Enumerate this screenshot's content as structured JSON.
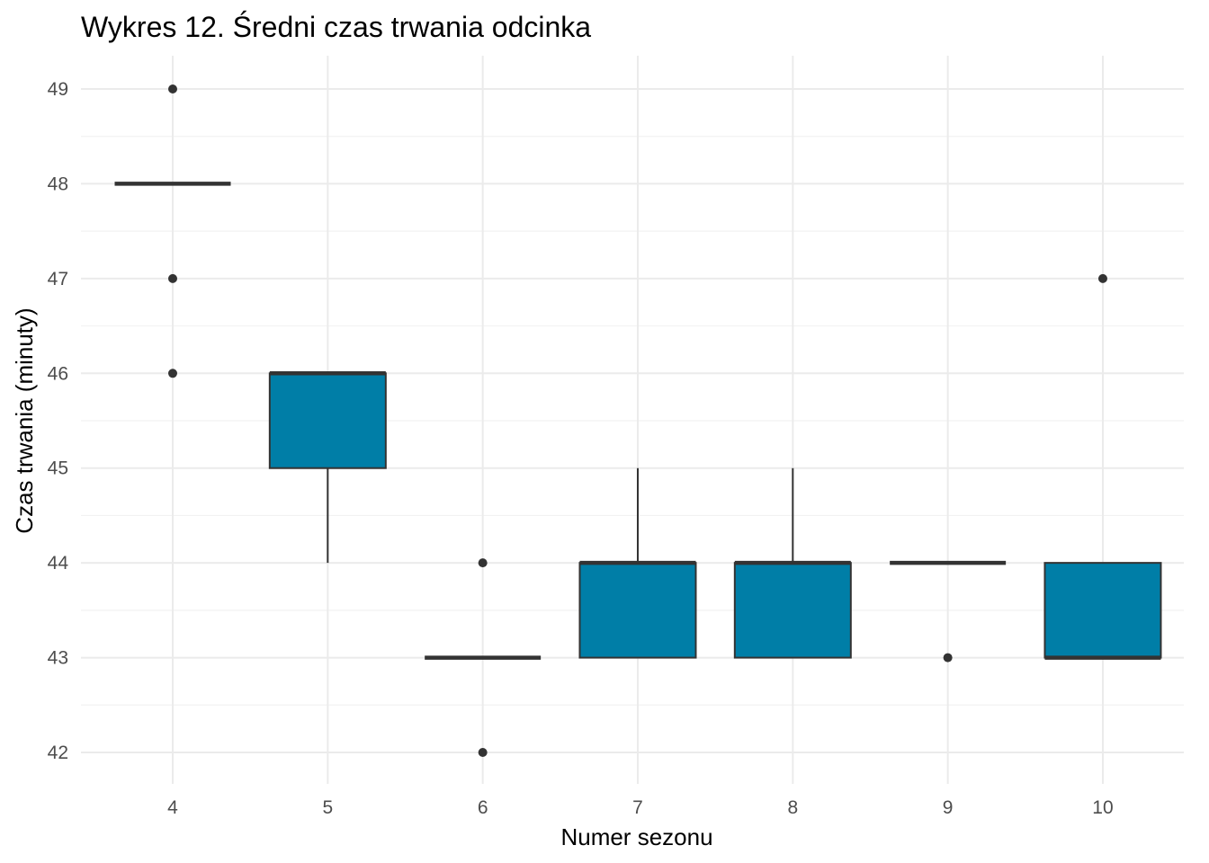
{
  "chart_data": {
    "type": "boxplot",
    "title": "Wykres 12. Średni czas trwania odcinka",
    "xlabel": "Numer sezonu",
    "ylabel": "Czas trwania (minuty)",
    "categories": [
      "4",
      "5",
      "6",
      "7",
      "8",
      "9",
      "10"
    ],
    "yticks": [
      "42",
      "43",
      "44",
      "45",
      "46",
      "47",
      "48",
      "49"
    ],
    "ylim": [
      41.7,
      49.3
    ],
    "grid": true,
    "box_color": "#007EA7",
    "line_color": "#333333",
    "boxes": [
      {
        "category": "4",
        "lower_whisker": 48,
        "q1": 48,
        "median": 48,
        "q3": 48,
        "upper_whisker": 48,
        "outliers": [
          46,
          47,
          49
        ]
      },
      {
        "category": "5",
        "lower_whisker": 44,
        "q1": 45,
        "median": 46,
        "q3": 46,
        "upper_whisker": 46,
        "outliers": []
      },
      {
        "category": "6",
        "lower_whisker": 43,
        "q1": 43,
        "median": 43,
        "q3": 43,
        "upper_whisker": 43,
        "outliers": [
          42,
          44
        ]
      },
      {
        "category": "7",
        "lower_whisker": 43,
        "q1": 43,
        "median": 44,
        "q3": 44,
        "upper_whisker": 45,
        "outliers": []
      },
      {
        "category": "8",
        "lower_whisker": 43,
        "q1": 43,
        "median": 44,
        "q3": 44,
        "upper_whisker": 45,
        "outliers": []
      },
      {
        "category": "9",
        "lower_whisker": 44,
        "q1": 44,
        "median": 44,
        "q3": 44,
        "upper_whisker": 44,
        "outliers": [
          43
        ]
      },
      {
        "category": "10",
        "lower_whisker": 43,
        "q1": 43,
        "median": 43,
        "q3": 44,
        "upper_whisker": 44,
        "outliers": [
          47
        ]
      }
    ]
  }
}
